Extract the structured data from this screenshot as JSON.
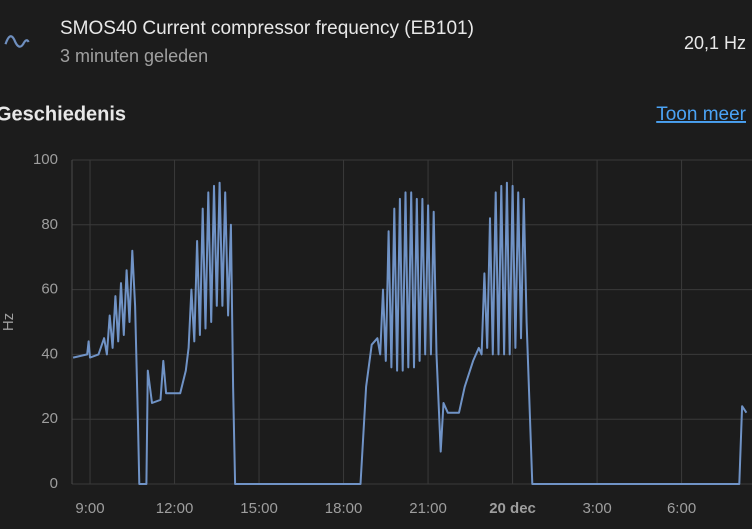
{
  "header": {
    "title": "SMOS40 Current compressor frequency (EB101)",
    "subtitle": "3 minuten geleden",
    "state": "20,1 Hz"
  },
  "section": {
    "title": "Geschiedenis",
    "link": "Toon meer"
  },
  "chart_data": {
    "type": "line",
    "y_label": "Hz",
    "x": [
      8.4,
      8.9,
      8.95,
      9.0,
      9.3,
      9.5,
      9.6,
      9.7,
      9.8,
      9.9,
      10.0,
      10.1,
      10.2,
      10.3,
      10.4,
      10.5,
      10.6,
      10.7,
      10.75,
      11.0,
      11.05,
      11.2,
      11.5,
      11.6,
      11.7,
      12.2,
      12.4,
      12.5,
      12.6,
      12.7,
      12.8,
      12.9,
      13.0,
      13.1,
      13.2,
      13.3,
      13.4,
      13.5,
      13.6,
      13.7,
      13.8,
      13.9,
      14.0,
      14.08,
      14.15,
      18.6,
      18.8,
      19.0,
      19.2,
      19.3,
      19.4,
      19.5,
      19.6,
      19.7,
      19.8,
      19.9,
      20.0,
      20.1,
      20.2,
      20.3,
      20.4,
      20.5,
      20.6,
      20.7,
      20.8,
      20.9,
      21.0,
      21.1,
      21.2,
      21.3,
      21.45,
      21.55,
      21.7,
      22.1,
      22.3,
      22.6,
      22.8,
      22.9,
      23.0,
      23.1,
      23.2,
      23.3,
      23.4,
      23.5,
      23.6,
      23.7,
      23.8,
      23.9,
      24.0,
      24.1,
      24.2,
      24.3,
      24.4,
      24.5,
      24.7,
      24.8,
      32.05,
      32.15,
      32.3
    ],
    "series": [
      {
        "color": "#7093c6",
        "values": [
          39,
          40,
          44,
          39,
          40,
          45,
          40,
          52,
          42,
          58,
          44,
          62,
          46,
          66,
          50,
          72,
          55,
          20,
          0,
          0,
          35,
          25,
          26,
          38,
          28,
          28,
          35,
          42,
          60,
          44,
          75,
          46,
          85,
          48,
          90,
          50,
          92,
          55,
          93,
          55,
          90,
          52,
          80,
          30,
          0,
          0,
          30,
          43,
          45,
          40,
          60,
          38,
          78,
          36,
          85,
          35,
          88,
          35,
          90,
          36,
          90,
          36,
          88,
          38,
          88,
          40,
          86,
          40,
          84,
          40,
          10,
          25,
          22,
          22,
          30,
          38,
          42,
          40,
          65,
          42,
          82,
          40,
          90,
          40,
          92,
          40,
          93,
          40,
          92,
          42,
          90,
          45,
          88,
          50,
          0,
          0,
          0,
          24,
          22
        ]
      }
    ],
    "xlim": [
      8.36,
      32.5
    ],
    "xticks": [
      {
        "value": 9,
        "label": "9:00"
      },
      {
        "value": 12,
        "label": "12:00"
      },
      {
        "value": 15,
        "label": "15:00"
      },
      {
        "value": 18,
        "label": "18:00"
      },
      {
        "value": 21,
        "label": "21:00"
      },
      {
        "value": 24,
        "label": "20 dec"
      },
      {
        "value": 27,
        "label": "3:00"
      },
      {
        "value": 30,
        "label": "6:00"
      }
    ],
    "ylim": [
      0,
      100
    ],
    "yticks": [
      0,
      20,
      40,
      60,
      80,
      100
    ],
    "grid": true
  }
}
